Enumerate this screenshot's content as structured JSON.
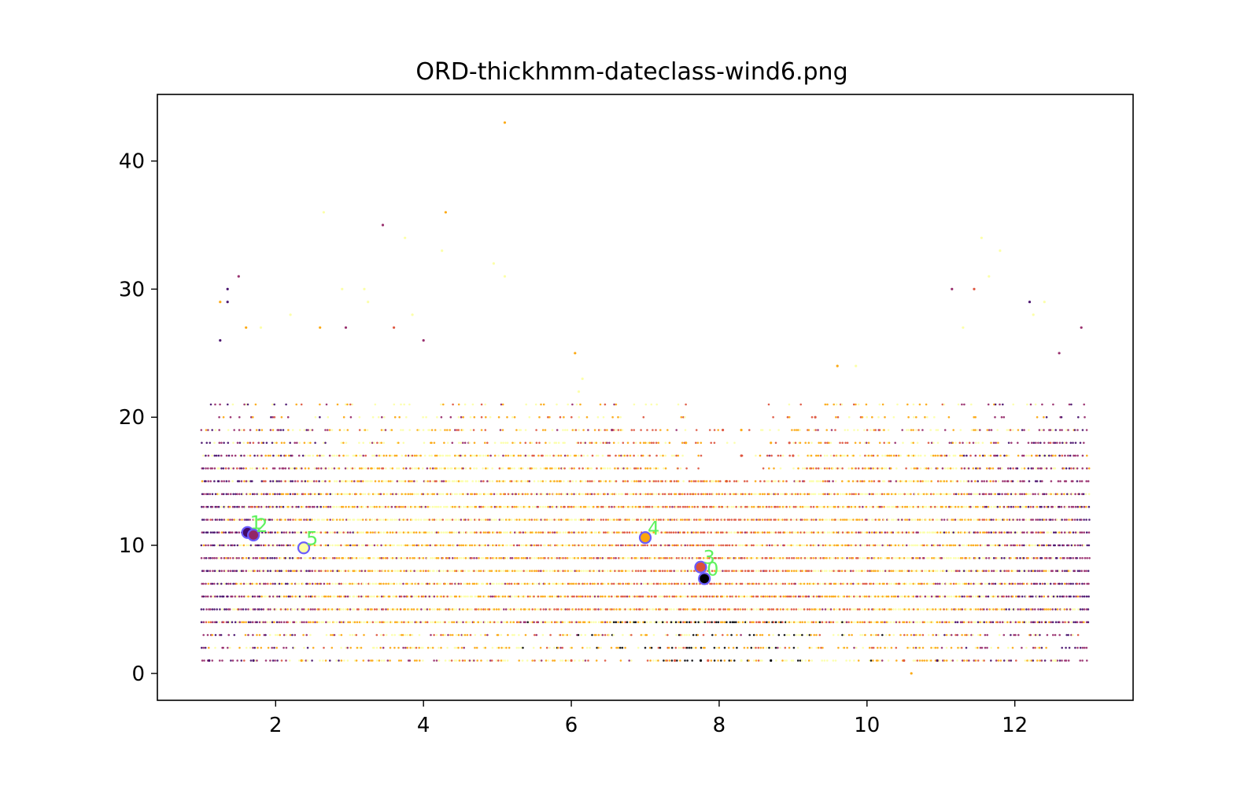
{
  "chart_data": {
    "type": "scatter",
    "title": "ORD-thickhmm-dateclass-wind6.png",
    "xlabel": "",
    "ylabel": "",
    "xlim": [
      0.4,
      13.6
    ],
    "ylim": [
      -2.1,
      45.2
    ],
    "x_ticks": [
      2,
      4,
      6,
      8,
      10,
      12
    ],
    "y_ticks": [
      0,
      10,
      20,
      30,
      40
    ],
    "grid": false,
    "legend": "none",
    "colormap": [
      "#000004",
      "#420a68",
      "#932667",
      "#dd513a",
      "#fca50a",
      "#fcffa4"
    ],
    "band_x_range": [
      1,
      13
    ],
    "band_y_levels": [
      1,
      2,
      3,
      4,
      5,
      6,
      7,
      8,
      9,
      10,
      11,
      12,
      13,
      14,
      15,
      16,
      17,
      18,
      19,
      20,
      21
    ],
    "outliers": [
      {
        "x": 5.1,
        "y": 43
      },
      {
        "x": 2.65,
        "y": 36
      },
      {
        "x": 4.3,
        "y": 36
      },
      {
        "x": 3.45,
        "y": 35
      },
      {
        "x": 3.75,
        "y": 34
      },
      {
        "x": 4.25,
        "y": 33
      },
      {
        "x": 11.55,
        "y": 34
      },
      {
        "x": 11.8,
        "y": 33
      },
      {
        "x": 4.95,
        "y": 32
      },
      {
        "x": 1.5,
        "y": 31
      },
      {
        "x": 11.65,
        "y": 31
      },
      {
        "x": 1.35,
        "y": 30
      },
      {
        "x": 2.9,
        "y": 30
      },
      {
        "x": 3.2,
        "y": 30
      },
      {
        "x": 11.45,
        "y": 30
      },
      {
        "x": 11.15,
        "y": 30
      },
      {
        "x": 1.25,
        "y": 29
      },
      {
        "x": 1.35,
        "y": 29
      },
      {
        "x": 3.25,
        "y": 29
      },
      {
        "x": 12.2,
        "y": 29
      },
      {
        "x": 12.4,
        "y": 29
      },
      {
        "x": 2.2,
        "y": 28
      },
      {
        "x": 3.85,
        "y": 28
      },
      {
        "x": 12.25,
        "y": 28
      },
      {
        "x": 1.6,
        "y": 27
      },
      {
        "x": 1.8,
        "y": 27
      },
      {
        "x": 2.6,
        "y": 27
      },
      {
        "x": 12.9,
        "y": 27
      },
      {
        "x": 12.6,
        "y": 25
      },
      {
        "x": 6.05,
        "y": 25
      },
      {
        "x": 1.25,
        "y": 26
      },
      {
        "x": 5.1,
        "y": 31
      },
      {
        "x": 2.95,
        "y": 27
      },
      {
        "x": 3.6,
        "y": 27
      },
      {
        "x": 4.0,
        "y": 26
      },
      {
        "x": 11.3,
        "y": 27
      },
      {
        "x": 9.6,
        "y": 24
      },
      {
        "x": 9.85,
        "y": 24
      },
      {
        "x": 6.15,
        "y": 23
      },
      {
        "x": 6.1,
        "y": 22
      },
      {
        "x": 6.55,
        "y": 19
      },
      {
        "x": 8.3,
        "y": 19
      },
      {
        "x": 8.05,
        "y": 19
      },
      {
        "x": 9.3,
        "y": 20
      },
      {
        "x": 7.55,
        "y": 18
      },
      {
        "x": 8.7,
        "y": 18
      },
      {
        "x": 8.95,
        "y": 18
      },
      {
        "x": 9.0,
        "y": 17
      },
      {
        "x": 8.3,
        "y": 17
      },
      {
        "x": 7.9,
        "y": 15
      },
      {
        "x": 8.1,
        "y": 15
      },
      {
        "x": 10.6,
        "y": 0
      },
      {
        "x": 1.1,
        "y": 1
      },
      {
        "x": 1.7,
        "y": 1
      },
      {
        "x": 2.35,
        "y": 1
      },
      {
        "x": 6.0,
        "y": 1
      },
      {
        "x": 7.4,
        "y": 1
      },
      {
        "x": 7.75,
        "y": 1
      },
      {
        "x": 7.85,
        "y": 1
      },
      {
        "x": 8.3,
        "y": 1
      },
      {
        "x": 8.7,
        "y": 1
      },
      {
        "x": 10.5,
        "y": 1
      },
      {
        "x": 10.95,
        "y": 1
      },
      {
        "x": 12.55,
        "y": 1
      }
    ],
    "centroids": [
      {
        "label": "0",
        "x": 7.8,
        "y": 7.4,
        "color": "#000004"
      },
      {
        "label": "1",
        "x": 1.62,
        "y": 11.0,
        "color": "#420a68"
      },
      {
        "label": "2",
        "x": 1.7,
        "y": 10.8,
        "color": "#932667"
      },
      {
        "label": "3",
        "x": 7.75,
        "y": 8.3,
        "color": "#dd513a"
      },
      {
        "label": "4",
        "x": 7.0,
        "y": 10.6,
        "color": "#fca50a"
      },
      {
        "label": "5",
        "x": 2.38,
        "y": 9.8,
        "color": "#fcffa4"
      }
    ],
    "centroid_edge_color": "#6a5cff",
    "centroid_label_color": "#5ef25e"
  }
}
